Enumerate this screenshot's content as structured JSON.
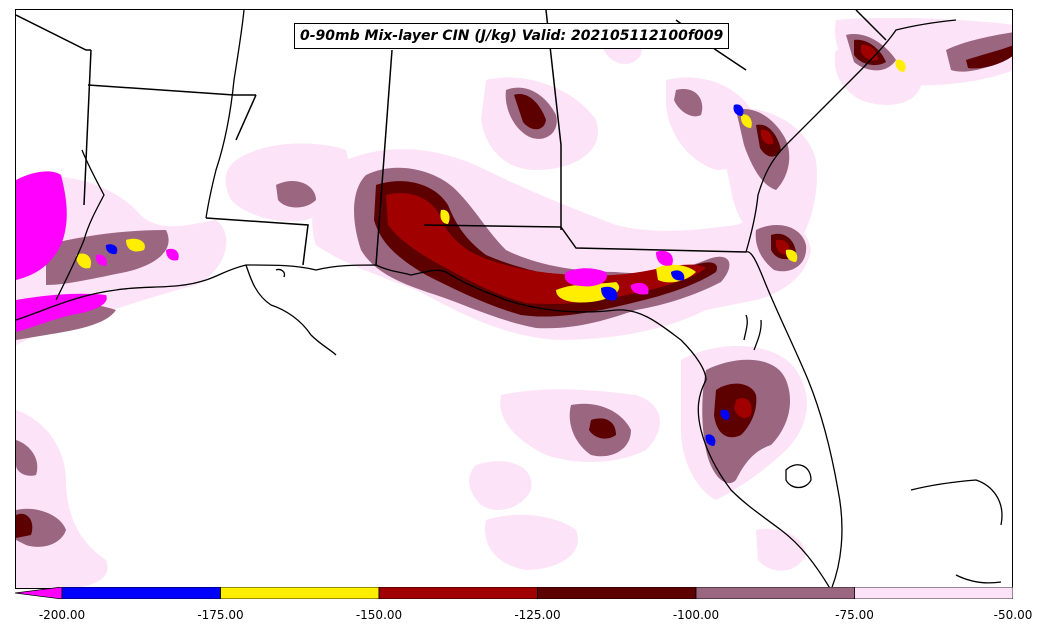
{
  "title": "0-90mb Mix-layer CIN (J/kg) Valid: 202105112100f009",
  "colorbar": {
    "extend": "min",
    "under_color": "#ff00ff",
    "bins": [
      {
        "from": -200,
        "to": -175,
        "color": "#0000ff"
      },
      {
        "from": -175,
        "to": -150,
        "color": "#ffee00"
      },
      {
        "from": -150,
        "to": -125,
        "color": "#a00000"
      },
      {
        "from": -125,
        "to": -100,
        "color": "#5c0000"
      },
      {
        "from": -100,
        "to": -75,
        "color": "#9a6680"
      },
      {
        "from": -75,
        "to": -50,
        "color": "#fde3f8"
      }
    ],
    "tick_labels": [
      "-200.00",
      "-175.00",
      "-150.00",
      "-125.00",
      "-100.00",
      "-75.00",
      "-50.00"
    ]
  },
  "map": {
    "region": "Southeastern United States and Gulf of Mexico",
    "colors": {
      "background": "#ffffff",
      "border": "#000000",
      "fill_lightest": "#fde3f8",
      "fill_mauve": "#9a6680",
      "fill_darkred": "#5c0000",
      "fill_red": "#a00000",
      "fill_yellow": "#ffee00",
      "fill_blue": "#0000ff",
      "fill_magenta": "#ff00ff"
    }
  }
}
